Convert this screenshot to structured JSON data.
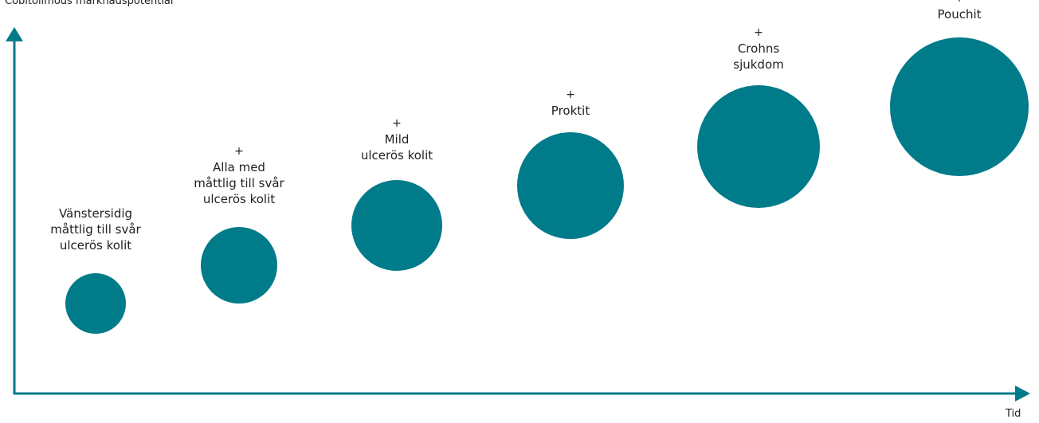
{
  "y_axis_title": "Cobitolimods marknadspotential",
  "x_axis_title": "Tid",
  "colors": {
    "axis": "#007b8a",
    "bubble": "#007b8a",
    "text": "#222222"
  },
  "stages": [
    {
      "has_plus": false,
      "lines": [
        "Vänstersidig",
        "måttlig till svår",
        "ulcerös kolit"
      ]
    },
    {
      "has_plus": true,
      "lines": [
        "Alla med",
        "måttlig till svår",
        "ulcerös kolit"
      ]
    },
    {
      "has_plus": true,
      "lines": [
        "Mild",
        "ulcerös kolit"
      ]
    },
    {
      "has_plus": true,
      "lines": [
        "Proktit"
      ]
    },
    {
      "has_plus": true,
      "lines": [
        "Crohns",
        "sjukdom"
      ]
    },
    {
      "has_plus": true,
      "lines": [
        "Pouchit"
      ]
    }
  ]
}
